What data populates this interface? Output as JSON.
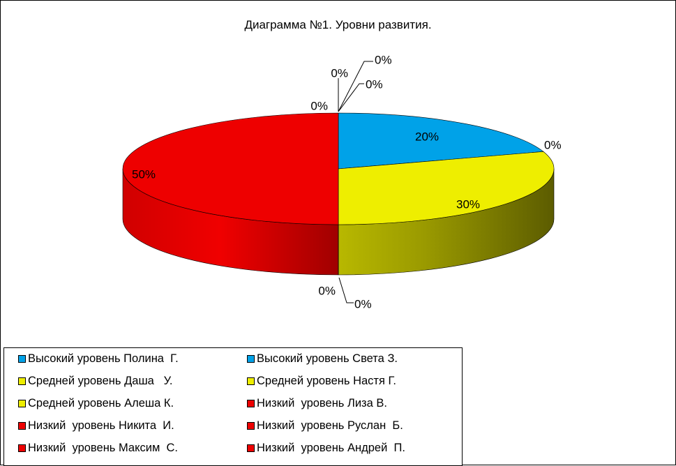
{
  "chart_data": {
    "type": "pie",
    "title": "Диаграмма №1. Уровни развития.",
    "categories": [
      "Высокий уровень Полина  Г.",
      "Высокий уровень Света З.",
      "Средней уровень Даша   У.",
      "Средней уровень Настя Г.",
      "Средней уровень Алеша К.",
      "Низкий  уровень Лиза В.",
      "Низкий  уровень Никита  И.",
      "Низкий  уровень Руслан  Б.",
      "Низкий  уровень Максим  С.",
      "Низкий  уровень Андрей  П."
    ],
    "values": [
      0,
      20,
      0,
      30,
      0,
      0,
      0,
      0,
      50,
      0
    ],
    "data_labels": [
      "0%",
      "20%",
      "0%",
      "30%",
      "0%",
      "0%",
      "0%",
      "0%",
      "50%",
      "0%"
    ],
    "colors": [
      "#00A2E8",
      "#00A2E8",
      "#EEEE00",
      "#EEEE00",
      "#EEEE00",
      "#EE0000",
      "#EE0000",
      "#EE0000",
      "#EE0000",
      "#EE0000"
    ],
    "legend_position": "bottom",
    "pie_style": "3d"
  }
}
